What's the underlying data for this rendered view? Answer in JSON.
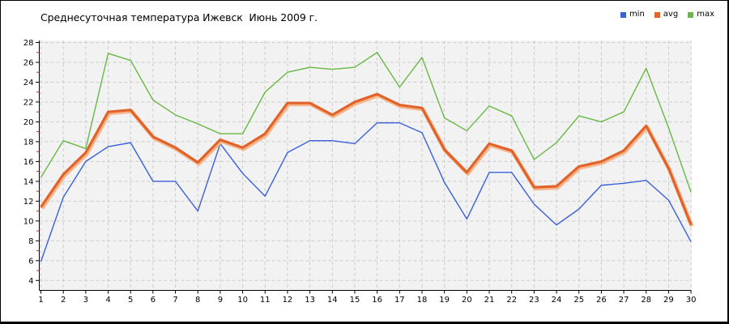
{
  "title": "Среднесуточная температура Ижевск  Июнь 2009 г.",
  "legend": {
    "position": "top-right",
    "items": [
      {
        "label": "min",
        "color": "#3A5FD9"
      },
      {
        "label": "avg",
        "color": "#E2632A"
      },
      {
        "label": "max",
        "color": "#67B943"
      }
    ]
  },
  "chart_data": {
    "type": "line",
    "title": "Среднесуточная температура Ижевск  Июнь 2009 г.",
    "xlabel": "",
    "ylabel": "",
    "x": [
      1,
      2,
      3,
      4,
      5,
      6,
      7,
      8,
      9,
      10,
      11,
      12,
      13,
      14,
      15,
      16,
      17,
      18,
      19,
      20,
      21,
      22,
      23,
      24,
      25,
      26,
      27,
      28,
      29,
      30
    ],
    "x_tick_labels": [
      "1",
      "2",
      "3",
      "4",
      "5",
      "6",
      "7",
      "8",
      "9",
      "10",
      "11",
      "12",
      "13",
      "14",
      "15",
      "16",
      "17",
      "18",
      "19",
      "20",
      "21",
      "22",
      "23",
      "24",
      "25",
      "26",
      "27",
      "28",
      "29",
      "30"
    ],
    "ylim": [
      4,
      28
    ],
    "y_tick_step": 2,
    "y_minor_tick_step": 1,
    "grid": true,
    "legend_position": "top-right",
    "series": [
      {
        "name": "min",
        "color": "#3A5FD9",
        "values": [
          5.9,
          12.4,
          16.0,
          17.5,
          17.9,
          14.0,
          14.0,
          11.0,
          17.8,
          14.8,
          12.5,
          16.9,
          18.1,
          18.1,
          17.8,
          19.9,
          19.9,
          18.9,
          13.9,
          10.2,
          14.9,
          14.9,
          11.7,
          9.6,
          11.2,
          13.6,
          13.8,
          14.1,
          12.1,
          7.9
        ]
      },
      {
        "name": "avg",
        "color": "#E2632A",
        "halo_color": "#F4B68C",
        "values": [
          11.4,
          14.7,
          16.9,
          21.0,
          21.2,
          18.5,
          17.4,
          15.9,
          18.2,
          17.4,
          18.8,
          21.9,
          21.9,
          20.7,
          22.0,
          22.8,
          21.7,
          21.4,
          17.2,
          14.9,
          17.8,
          17.1,
          13.4,
          13.5,
          15.5,
          16.0,
          17.1,
          19.6,
          15.3,
          9.6
        ]
      },
      {
        "name": "max",
        "color": "#67B943",
        "values": [
          14.4,
          18.1,
          17.3,
          26.9,
          26.2,
          22.2,
          20.7,
          19.8,
          18.8,
          18.8,
          23.0,
          25.0,
          25.5,
          25.3,
          25.5,
          27.0,
          23.5,
          26.5,
          20.4,
          19.1,
          21.6,
          20.6,
          16.2,
          17.9,
          20.6,
          20.0,
          21.0,
          25.4,
          19.4,
          12.9
        ]
      }
    ],
    "style": {
      "plot_bg": "#F2F2F2",
      "grid_color": "#CCCCCC",
      "axis_color": "#000000",
      "minor_tick_color": "#C03030",
      "figure_bg": "#FFFFFF",
      "border_color": "#000000"
    }
  }
}
